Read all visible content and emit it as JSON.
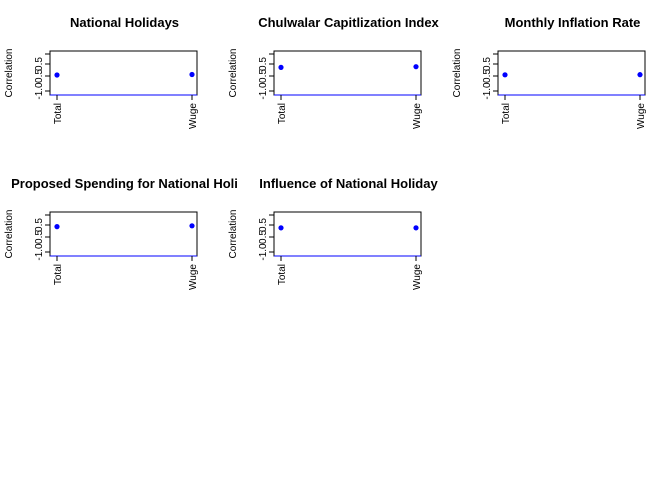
{
  "chart_data": [
    {
      "type": "scatter",
      "title": "National Holidays",
      "ylabel": "Correlation",
      "categories": [
        "Total",
        "Wuge"
      ],
      "ylim": [
        -1,
        1
      ],
      "yticks": [
        "-1.0",
        "0.5",
        "0.5"
      ],
      "series": [
        {
          "values": [
            0.0,
            0.03
          ]
        }
      ]
    },
    {
      "type": "scatter",
      "title": "Chulwalar Capitlization Index",
      "ylabel": "Correlation",
      "categories": [
        "Total",
        "Wuge"
      ],
      "ylim": [
        -1,
        1
      ],
      "yticks": [
        "-1.0",
        "0.5",
        "0.5"
      ],
      "series": [
        {
          "values": [
            0.45,
            0.49
          ]
        }
      ]
    },
    {
      "type": "scatter",
      "title": "Monthly Inflation Rate",
      "ylabel": "Correlation",
      "categories": [
        "Total",
        "Wuge"
      ],
      "ylim": [
        -1,
        1
      ],
      "yticks": [
        "-1.0",
        "0.5",
        "0.5"
      ],
      "series": [
        {
          "values": [
            0.01,
            0.02
          ]
        }
      ]
    },
    {
      "type": "scatter",
      "title": "Proposed Spending for National Holi",
      "ylabel": "Correlation",
      "categories": [
        "Total",
        "Wuge"
      ],
      "ylim": [
        -1,
        1
      ],
      "yticks": [
        "-1.0",
        "0.5",
        "0.5"
      ],
      "series": [
        {
          "values": [
            0.55,
            0.6
          ]
        }
      ]
    },
    {
      "type": "scatter",
      "title": "Influence of National Holiday",
      "ylabel": "Correlation",
      "categories": [
        "Total",
        "Wuge"
      ],
      "ylim": [
        -1,
        1
      ],
      "yticks": [
        "-1.0",
        "0.5",
        "0.5"
      ],
      "series": [
        {
          "values": [
            0.48,
            0.48
          ]
        }
      ]
    }
  ],
  "colors": {
    "point": "#0000ff",
    "axis": "#000000",
    "baseline": "#0000ff"
  }
}
